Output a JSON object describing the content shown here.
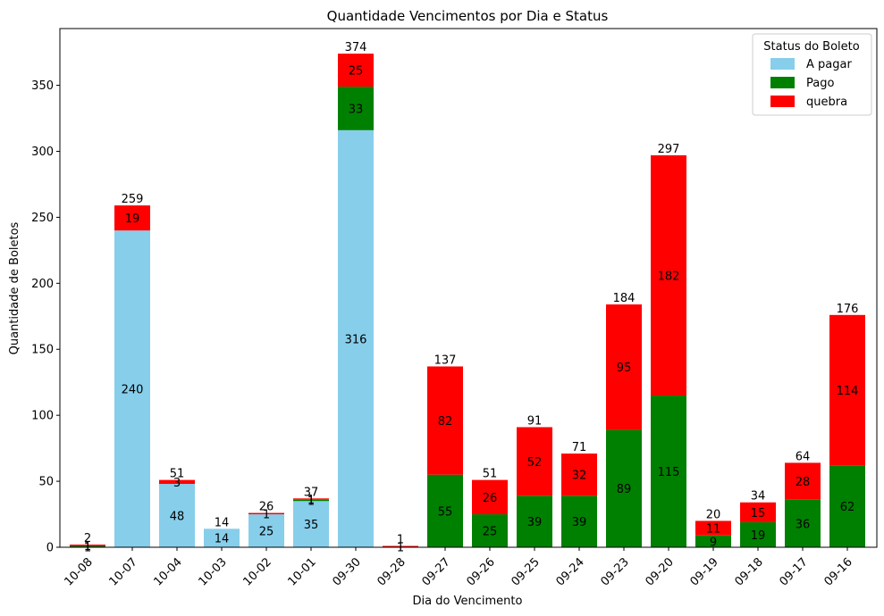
{
  "chart_data": {
    "type": "bar",
    "stacked": true,
    "title": "Quantidade Vencimentos por Dia e Status",
    "xlabel": "Dia do Vencimento",
    "ylabel": "Quantidade de Boletos",
    "ylim": [
      0,
      393
    ],
    "yticks": [
      0,
      50,
      100,
      150,
      200,
      250,
      300,
      350
    ],
    "categories": [
      "10-08",
      "10-07",
      "10-04",
      "10-03",
      "10-02",
      "10-01",
      "09-30",
      "09-28",
      "09-27",
      "09-26",
      "09-25",
      "09-24",
      "09-23",
      "09-20",
      "09-19",
      "09-18",
      "09-17",
      "09-16"
    ],
    "legend": {
      "title": "Status do Boleto",
      "position": "top-right"
    },
    "series": [
      {
        "name": "A pagar",
        "color": "#87ceeb",
        "values": [
          0,
          240,
          48,
          14,
          25,
          35,
          316,
          0,
          0,
          0,
          0,
          0,
          0,
          0,
          0,
          0,
          0,
          0
        ]
      },
      {
        "name": "Pago",
        "color": "#008000",
        "values": [
          1,
          0,
          0,
          0,
          0,
          1,
          33,
          0,
          55,
          25,
          39,
          39,
          89,
          115,
          9,
          19,
          36,
          62
        ]
      },
      {
        "name": "quebra",
        "color": "#ff0000",
        "values": [
          1,
          19,
          3,
          0,
          1,
          1,
          25,
          1,
          82,
          26,
          52,
          32,
          95,
          182,
          11,
          15,
          28,
          114
        ]
      }
    ],
    "segment_labels": [
      [
        "",
        "1",
        "1"
      ],
      [
        "240",
        "",
        "19"
      ],
      [
        "48",
        "",
        "3"
      ],
      [
        "14",
        "",
        ""
      ],
      [
        "25",
        "",
        "1"
      ],
      [
        "35",
        "1",
        "1"
      ],
      [
        "316",
        "33",
        "25"
      ],
      [
        "",
        "",
        "1"
      ],
      [
        "",
        "55",
        "82"
      ],
      [
        "",
        "25",
        "26"
      ],
      [
        "",
        "39",
        "52"
      ],
      [
        "",
        "39",
        "32"
      ],
      [
        "",
        "89",
        "95"
      ],
      [
        "",
        "115",
        "182"
      ],
      [
        "",
        "9",
        "11"
      ],
      [
        "",
        "19",
        "15"
      ],
      [
        "",
        "36",
        "28"
      ],
      [
        "",
        "62",
        "114"
      ]
    ],
    "totals": [
      2,
      259,
      51,
      14,
      26,
      37,
      374,
      1,
      137,
      51,
      91,
      71,
      184,
      297,
      20,
      34,
      64,
      176
    ]
  }
}
